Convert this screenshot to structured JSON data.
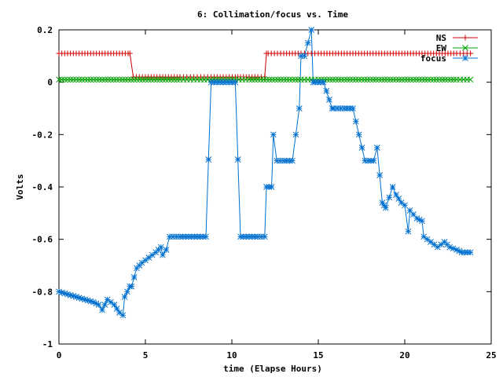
{
  "chart_data": {
    "type": "line",
    "title": "6: Collimation/focus vs. Time",
    "xlabel": "time (Elapse Hours)",
    "ylabel": "Volts",
    "xlim": [
      0,
      25
    ],
    "ylim": [
      -1,
      0.2
    ],
    "x_ticks": [
      {
        "value": 0,
        "label": "0"
      },
      {
        "value": 5,
        "label": "5"
      },
      {
        "value": 10,
        "label": "10"
      },
      {
        "value": 15,
        "label": "15"
      },
      {
        "value": 20,
        "label": "20"
      },
      {
        "value": 25,
        "label": "25"
      }
    ],
    "y_ticks": [
      {
        "value": 0.2,
        "label": "0.2"
      },
      {
        "value": 0,
        "label": "0"
      },
      {
        "value": -0.2,
        "label": "-0.2"
      },
      {
        "value": -0.4,
        "label": "-0.4"
      },
      {
        "value": -0.6,
        "label": "-0.6"
      },
      {
        "value": -0.8,
        "label": "-0.8"
      },
      {
        "value": -1,
        "label": "-1"
      }
    ],
    "grid": false,
    "legend_position": "top-right",
    "series": [
      {
        "name": "NS",
        "color": "#d00000",
        "marker": "plus",
        "x": [
          0,
          0.5,
          1,
          1.5,
          2,
          2.5,
          3,
          3.5,
          4,
          4.1,
          4.3,
          5,
          6,
          7,
          8,
          8.8,
          10.2,
          10.5,
          11,
          11.5,
          11.9,
          12,
          12.1,
          13,
          14,
          15,
          16,
          17,
          18,
          19,
          20,
          21,
          22,
          23,
          23.8
        ],
        "y": [
          0.11,
          0.11,
          0.11,
          0.11,
          0.11,
          0.11,
          0.11,
          0.11,
          0.11,
          0.11,
          0.02,
          0.02,
          0.02,
          0.02,
          0.02,
          0.02,
          0.02,
          0.02,
          0.02,
          0.02,
          0.02,
          0.11,
          0.11,
          0.11,
          0.11,
          0.11,
          0.11,
          0.11,
          0.11,
          0.11,
          0.11,
          0.11,
          0.11,
          0.11,
          0.11
        ]
      },
      {
        "name": "EW",
        "color": "#00a000",
        "marker": "x",
        "x": [
          0,
          1,
          2,
          3,
          4,
          5,
          6,
          7,
          8,
          8.8,
          10.2,
          11,
          12,
          13,
          14,
          15,
          16,
          17,
          18,
          19,
          20,
          21,
          22,
          23,
          23.8
        ],
        "y": [
          0.01,
          0.01,
          0.01,
          0.01,
          0.01,
          0.01,
          0.01,
          0.01,
          0.01,
          0.01,
          0.01,
          0.01,
          0.01,
          0.01,
          0.01,
          0.01,
          0.01,
          0.01,
          0.01,
          0.01,
          0.01,
          0.01,
          0.01,
          0.01,
          0.01
        ]
      },
      {
        "name": "focus",
        "color": "#0070d0",
        "marker": "star",
        "x": [
          0,
          0.5,
          1,
          1.5,
          2,
          2.3,
          2.5,
          2.8,
          3.2,
          3.5,
          3.7,
          3.8,
          4.1,
          4.2,
          4.5,
          4.8,
          5.2,
          5.6,
          5.9,
          6,
          6.2,
          6.4,
          7,
          7.5,
          8,
          8.5,
          8.8,
          10.2,
          10.5,
          11,
          11.5,
          11.9,
          12,
          12.3,
          12.4,
          12.6,
          13,
          13.5,
          13.9,
          14,
          14.2,
          14.6,
          14.7,
          14.8,
          15.3,
          15.8,
          15.9,
          16.5,
          17,
          17.7,
          17.9,
          18.2,
          18.4,
          18.7,
          18.8,
          18.9,
          19.3,
          19.5,
          19.8,
          20,
          20.2,
          20.3,
          20.7,
          21,
          21.1,
          21.5,
          21.9,
          22.3,
          22.6,
          23,
          23.3,
          23.8
        ],
        "y": [
          -0.8,
          -0.81,
          -0.82,
          -0.83,
          -0.84,
          -0.85,
          -0.87,
          -0.83,
          -0.85,
          -0.88,
          -0.89,
          -0.82,
          -0.78,
          -0.78,
          -0.71,
          -0.69,
          -0.67,
          -0.65,
          -0.63,
          -0.66,
          -0.64,
          -0.59,
          -0.59,
          -0.59,
          -0.59,
          -0.59,
          0.0,
          0.0,
          -0.59,
          -0.59,
          -0.59,
          -0.59,
          -0.4,
          -0.4,
          -0.2,
          -0.3,
          -0.3,
          -0.3,
          -0.1,
          0.1,
          0.1,
          0.2,
          0.0,
          0.0,
          0.0,
          -0.1,
          -0.1,
          -0.1,
          -0.1,
          -0.3,
          -0.3,
          -0.3,
          -0.25,
          -0.46,
          -0.47,
          -0.48,
          -0.4,
          -0.43,
          -0.46,
          -0.47,
          -0.57,
          -0.49,
          -0.52,
          -0.53,
          -0.59,
          -0.61,
          -0.63,
          -0.61,
          -0.63,
          -0.64,
          -0.65,
          -0.65
        ]
      }
    ]
  }
}
